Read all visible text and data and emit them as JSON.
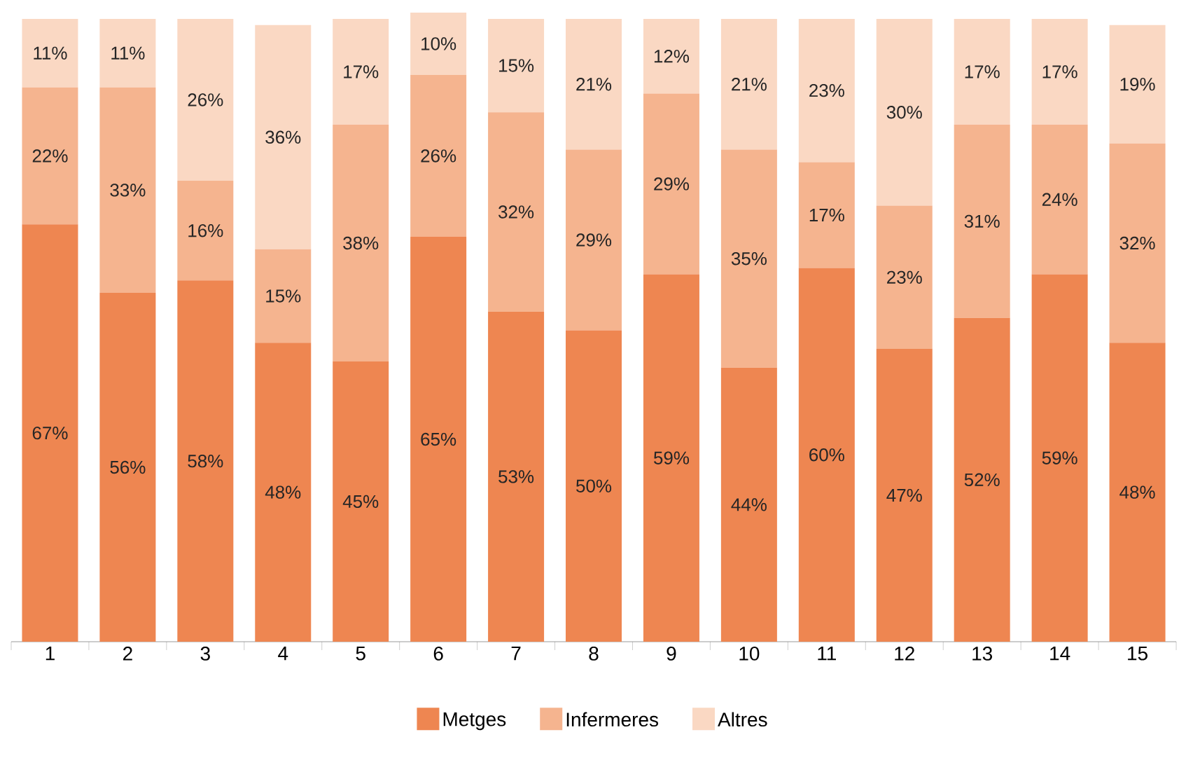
{
  "chart_data": {
    "type": "bar",
    "stacked": true,
    "legend": "bottom",
    "categories": [
      "1",
      "2",
      "3",
      "4",
      "5",
      "6",
      "7",
      "8",
      "9",
      "10",
      "11",
      "12",
      "13",
      "14",
      "15"
    ],
    "series": [
      {
        "name": "Metges",
        "color": "#ee8651",
        "values": [
          67,
          56,
          58,
          48,
          45,
          65,
          53,
          50,
          59,
          44,
          60,
          47,
          52,
          59,
          48
        ],
        "value_labels": [
          "67%",
          "56%",
          "58%",
          "48%",
          "45%",
          "65%",
          "53%",
          "50%",
          "59%",
          "44%",
          "60%",
          "47%",
          "52%",
          "59%",
          "48%"
        ]
      },
      {
        "name": "Infermeres",
        "color": "#f5b48f",
        "values": [
          22,
          33,
          16,
          15,
          38,
          26,
          32,
          29,
          29,
          35,
          17,
          23,
          31,
          24,
          32
        ],
        "value_labels": [
          "22%",
          "33%",
          "16%",
          "15%",
          "38%",
          "26%",
          "32%",
          "29%",
          "29%",
          "35%",
          "17%",
          "23%",
          "31%",
          "24%",
          "32%"
        ]
      },
      {
        "name": "Altres",
        "color": "#fad8c3",
        "values": [
          11,
          11,
          26,
          36,
          17,
          10,
          15,
          21,
          12,
          21,
          23,
          30,
          17,
          17,
          19
        ],
        "value_labels": [
          "11%",
          "11%",
          "26%",
          "36%",
          "17%",
          "10%",
          "15%",
          "21%",
          "12%",
          "21%",
          "23%",
          "30%",
          "17%",
          "17%",
          "19%"
        ]
      }
    ]
  }
}
